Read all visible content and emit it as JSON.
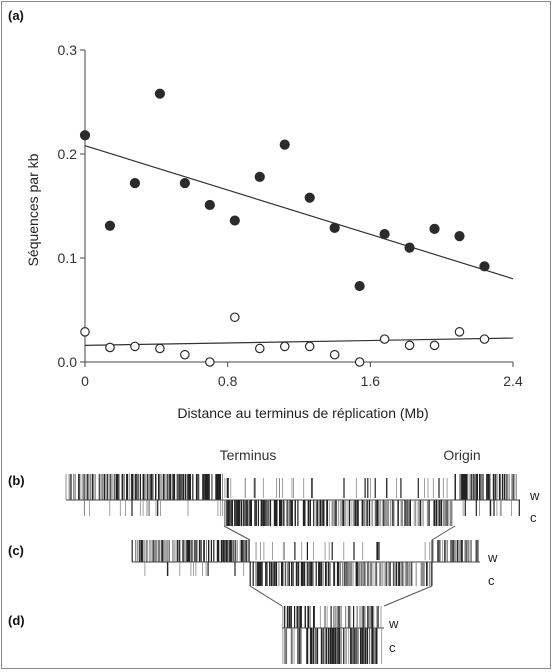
{
  "panel_labels": {
    "a": "(a)",
    "b": "(b)",
    "c": "(c)",
    "d": "(d)"
  },
  "chart_data": {
    "type": "scatter",
    "title": "",
    "xlabel": "Distance au terminus de réplication (Mb)",
    "ylabel": "Séquences par kb",
    "xlim": [
      0,
      2.4
    ],
    "ylim": [
      0,
      0.3
    ],
    "xticks": [
      0,
      0.8,
      1.6,
      2.4
    ],
    "xtick_labels": [
      "0",
      "0.8",
      "1.6",
      "2.4"
    ],
    "yticks": [
      0,
      0.1,
      0.2,
      0.3
    ],
    "ytick_labels": [
      "0.0",
      "0.1",
      "0.2",
      "0.3"
    ],
    "grid": false,
    "series": [
      {
        "marker": "filled-circle",
        "color": "#2b2b2b",
        "x": [
          0,
          0.14,
          0.28,
          0.42,
          0.56,
          0.7,
          0.84,
          0.98,
          1.12,
          1.26,
          1.4,
          1.54,
          1.68,
          1.82,
          1.96,
          2.1,
          2.24
        ],
        "y": [
          0.218,
          0.131,
          0.172,
          0.258,
          0.172,
          0.151,
          0.136,
          0.178,
          0.209,
          0.158,
          0.129,
          0.073,
          0.123,
          0.11,
          0.128,
          0.121,
          0.092
        ],
        "trend": [
          [
            0,
            0.208
          ],
          [
            2.4,
            0.08
          ]
        ]
      },
      {
        "marker": "open-circle",
        "color": "#2b2b2b",
        "x": [
          0,
          0.14,
          0.28,
          0.42,
          0.56,
          0.7,
          0.84,
          0.98,
          1.12,
          1.26,
          1.4,
          1.54,
          1.68,
          1.82,
          1.96,
          2.1,
          2.24
        ],
        "y": [
          0.029,
          0.014,
          0.015,
          0.013,
          0.007,
          0.0,
          0.043,
          0.013,
          0.015,
          0.015,
          0.007,
          0.0,
          0.022,
          0.016,
          0.016,
          0.029,
          0.022
        ],
        "trend": [
          [
            0,
            0.016
          ],
          [
            2.4,
            0.023
          ]
        ]
      }
    ]
  },
  "maps": {
    "terminus_label": "Terminus",
    "origin_label": "Origin",
    "strand_w": "w",
    "strand_c": "c"
  }
}
